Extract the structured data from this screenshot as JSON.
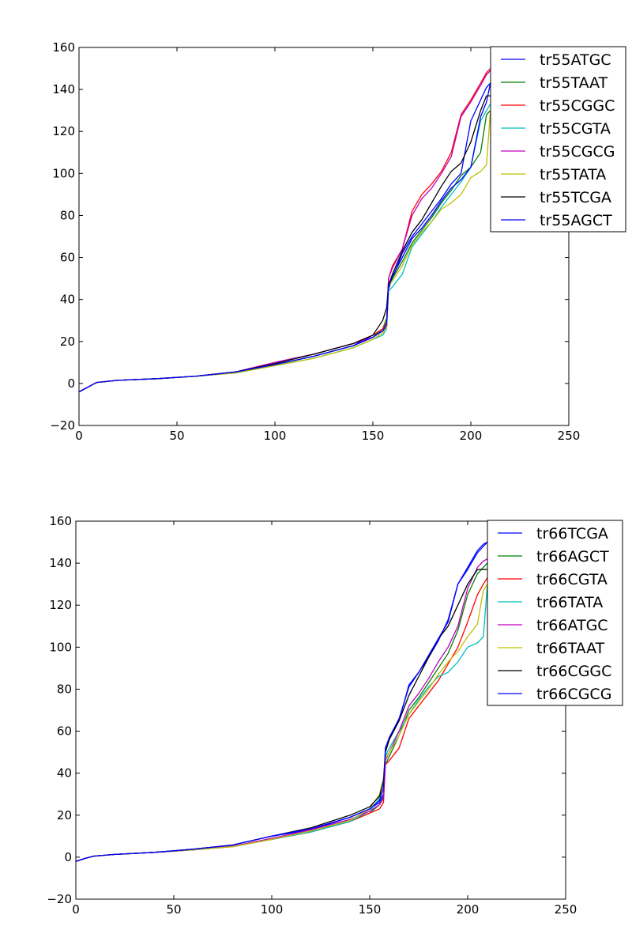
{
  "chart_data": [
    {
      "type": "line",
      "title": "",
      "xlabel": "",
      "ylabel": "",
      "xlim": [
        0,
        250
      ],
      "ylim": [
        -20,
        160
      ],
      "xticks": [
        "0",
        "50",
        "100",
        "150",
        "200",
        "250"
      ],
      "yticks": [
        "−20",
        "0",
        "20",
        "40",
        "60",
        "80",
        "100",
        "120",
        "140",
        "160"
      ],
      "grid": false,
      "legend_position": "top-right",
      "series": [
        {
          "name": "tr55ATGC",
          "color": "#0000ff",
          "x": [
            0,
            5,
            9,
            20,
            40,
            60,
            80,
            100,
            120,
            140,
            150,
            155,
            157,
            158,
            160,
            165,
            170,
            175,
            180,
            185,
            190,
            195,
            200,
            205,
            208,
            210
          ],
          "y": [
            -4,
            -1.5,
            0.5,
            1.5,
            2.3,
            3.5,
            5.5,
            9,
            13,
            18,
            23,
            25,
            27,
            45,
            50,
            62,
            70,
            76,
            82,
            88,
            95,
            100,
            125,
            135,
            141,
            143
          ]
        },
        {
          "name": "tr55TAAT",
          "color": "#008000",
          "x": [
            0,
            5,
            9,
            20,
            40,
            60,
            80,
            100,
            120,
            140,
            150,
            155,
            157,
            158,
            160,
            165,
            170,
            175,
            180,
            185,
            190,
            195,
            200,
            205,
            208,
            210
          ],
          "y": [
            -4,
            -1.5,
            0.5,
            1.5,
            2.3,
            3.5,
            5.5,
            9,
            13,
            18,
            22,
            26,
            31,
            46,
            50,
            58,
            67,
            73,
            79,
            86,
            92,
            99,
            103,
            110,
            128,
            130
          ]
        },
        {
          "name": "tr55CGGC",
          "color": "#ff0000",
          "x": [
            0,
            5,
            9,
            20,
            40,
            60,
            80,
            100,
            120,
            140,
            150,
            155,
            157,
            158,
            160,
            165,
            170,
            175,
            180,
            185,
            190,
            195,
            200,
            205,
            208,
            210
          ],
          "y": [
            -4,
            -1.5,
            0.5,
            1.5,
            2.3,
            3.5,
            5.5,
            10,
            14,
            19,
            23,
            26,
            29,
            50,
            56,
            64,
            82,
            90,
            95,
            101,
            110,
            128,
            135,
            143,
            148,
            150
          ]
        },
        {
          "name": "tr55CGTA",
          "color": "#00bfbf",
          "x": [
            0,
            5,
            9,
            20,
            40,
            60,
            80,
            100,
            120,
            140,
            150,
            155,
            157,
            158,
            160,
            165,
            170,
            175,
            180,
            185,
            190,
            195,
            200,
            205,
            208,
            210
          ],
          "y": [
            -4,
            -1.5,
            0.5,
            1.5,
            2.3,
            3.5,
            5,
            8.5,
            12,
            17,
            21,
            23,
            26,
            44,
            46,
            52,
            65,
            71,
            77,
            84,
            90,
            96,
            103,
            125,
            130,
            133
          ]
        },
        {
          "name": "tr55CGCG",
          "color": "#bf00bf",
          "x": [
            0,
            5,
            9,
            20,
            40,
            60,
            80,
            100,
            120,
            140,
            150,
            155,
            157,
            158,
            160,
            165,
            170,
            175,
            180,
            185,
            190,
            195,
            200,
            205,
            208,
            210
          ],
          "y": [
            -4,
            -1.5,
            0.5,
            1.5,
            2.3,
            3.5,
            5.5,
            10,
            14,
            19,
            22,
            25,
            28,
            50,
            55,
            64,
            80,
            88,
            93,
            100,
            108,
            127,
            134,
            142,
            147,
            149
          ]
        },
        {
          "name": "tr55TATA",
          "color": "#bfbf00",
          "x": [
            0,
            5,
            9,
            20,
            40,
            60,
            80,
            100,
            120,
            140,
            150,
            155,
            157,
            158,
            160,
            165,
            170,
            175,
            180,
            185,
            190,
            195,
            200,
            205,
            208,
            210
          ],
          "y": [
            -4,
            -1.5,
            0.5,
            1.5,
            2.3,
            3.5,
            5,
            8.5,
            12,
            17,
            21,
            24,
            27,
            46,
            49,
            56,
            66,
            72,
            77,
            83,
            86,
            90,
            98,
            101,
            104,
            130
          ]
        },
        {
          "name": "tr55TCGA",
          "color": "#000000",
          "x": [
            0,
            5,
            9,
            20,
            40,
            60,
            80,
            100,
            120,
            140,
            150,
            155,
            157,
            158,
            160,
            165,
            170,
            175,
            180,
            185,
            190,
            195,
            200,
            205,
            208,
            210
          ],
          "y": [
            -4,
            -1.5,
            0.5,
            1.5,
            2.3,
            3.5,
            5.5,
            9.5,
            14,
            19,
            23,
            30,
            36,
            47,
            52,
            63,
            72,
            78,
            86,
            94,
            101,
            105,
            115,
            130,
            137,
            137
          ]
        },
        {
          "name": "tr55AGCT",
          "color": "#0000ff",
          "x": [
            0,
            5,
            9,
            20,
            40,
            60,
            80,
            100,
            120,
            140,
            150,
            155,
            157,
            158,
            160,
            165,
            170,
            175,
            180,
            185,
            190,
            195,
            200,
            205,
            208,
            210
          ],
          "y": [
            -4,
            -1.5,
            0.5,
            1.5,
            2.3,
            3.5,
            5.5,
            9,
            13,
            18,
            22,
            25,
            28,
            46,
            51,
            60,
            69,
            74,
            80,
            87,
            93,
            97,
            103,
            127,
            134,
            143
          ]
        }
      ]
    },
    {
      "type": "line",
      "title": "",
      "xlabel": "",
      "ylabel": "",
      "xlim": [
        0,
        250
      ],
      "ylim": [
        -20,
        160
      ],
      "xticks": [
        "0",
        "50",
        "100",
        "150",
        "200",
        "250"
      ],
      "yticks": [
        "−20",
        "0",
        "20",
        "40",
        "60",
        "80",
        "100",
        "120",
        "140",
        "160"
      ],
      "grid": false,
      "legend_position": "top-right",
      "series": [
        {
          "name": "tr66TCGA",
          "color": "#0000ff",
          "x": [
            0,
            5,
            9,
            20,
            40,
            60,
            80,
            100,
            120,
            140,
            150,
            155,
            157,
            158,
            160,
            165,
            170,
            175,
            180,
            185,
            190,
            195,
            200,
            205,
            208,
            210
          ],
          "y": [
            -2,
            -0.5,
            0.5,
            1.3,
            2.3,
            3.8,
            5.8,
            10,
            13,
            19,
            23,
            26,
            30,
            50,
            57,
            65,
            82,
            88,
            95,
            103,
            113,
            130,
            137,
            145,
            148,
            150
          ]
        },
        {
          "name": "tr66AGCT",
          "color": "#008000",
          "x": [
            0,
            5,
            9,
            20,
            40,
            60,
            80,
            100,
            120,
            140,
            150,
            155,
            157,
            158,
            160,
            165,
            170,
            175,
            180,
            185,
            190,
            195,
            200,
            205,
            208,
            210
          ],
          "y": [
            -2,
            -0.5,
            0.5,
            1.3,
            2.3,
            3.5,
            5.2,
            8.5,
            12,
            17,
            21,
            25,
            29,
            44,
            48,
            58,
            70,
            76,
            83,
            90,
            97,
            108,
            125,
            135,
            138,
            140
          ]
        },
        {
          "name": "tr66CGTA",
          "color": "#ff0000",
          "x": [
            0,
            5,
            9,
            20,
            40,
            60,
            80,
            100,
            120,
            140,
            150,
            155,
            157,
            158,
            160,
            165,
            170,
            175,
            180,
            185,
            190,
            195,
            200,
            205,
            208,
            210
          ],
          "y": [
            -2,
            -0.5,
            0.5,
            1.3,
            2.3,
            3.5,
            5,
            8.5,
            12,
            17,
            21,
            23,
            26,
            44,
            46,
            52,
            66,
            72,
            78,
            84,
            92,
            100,
            112,
            125,
            130,
            133
          ]
        },
        {
          "name": "tr66TATA",
          "color": "#00bfbf",
          "x": [
            0,
            5,
            9,
            20,
            40,
            60,
            80,
            100,
            120,
            140,
            150,
            155,
            157,
            158,
            160,
            165,
            170,
            175,
            180,
            185,
            190,
            195,
            200,
            205,
            208,
            210
          ],
          "y": [
            -2,
            -0.5,
            0.5,
            1.3,
            2.3,
            3.5,
            5,
            8.5,
            12,
            17,
            22,
            28,
            37,
            48,
            52,
            60,
            68,
            75,
            81,
            86,
            88,
            93,
            100,
            102,
            105,
            129
          ]
        },
        {
          "name": "tr66ATGC",
          "color": "#bf00bf",
          "x": [
            0,
            5,
            9,
            20,
            40,
            60,
            80,
            100,
            120,
            140,
            150,
            155,
            157,
            158,
            160,
            165,
            170,
            175,
            180,
            185,
            190,
            195,
            200,
            205,
            208,
            210
          ],
          "y": [
            -2,
            -0.5,
            0.5,
            1.3,
            2.3,
            3.5,
            5.2,
            9,
            13,
            18,
            22,
            25,
            28,
            46,
            50,
            60,
            72,
            78,
            85,
            93,
            100,
            110,
            128,
            138,
            141,
            142
          ]
        },
        {
          "name": "tr66TAAT",
          "color": "#bfbf00",
          "x": [
            0,
            5,
            9,
            20,
            40,
            60,
            80,
            100,
            120,
            140,
            150,
            155,
            157,
            158,
            160,
            165,
            170,
            175,
            180,
            185,
            190,
            195,
            200,
            205,
            208,
            210
          ],
          "y": [
            -2,
            -0.5,
            0.5,
            1.3,
            2.3,
            3.5,
            5,
            8.5,
            12.5,
            17.5,
            23,
            30,
            38,
            47,
            50,
            58,
            68,
            74,
            80,
            87,
            93,
            98,
            105,
            111,
            127,
            130
          ]
        },
        {
          "name": "tr66CGGC",
          "color": "#000000",
          "x": [
            0,
            5,
            9,
            20,
            40,
            60,
            80,
            100,
            120,
            140,
            150,
            155,
            157,
            158,
            160,
            165,
            170,
            175,
            180,
            185,
            190,
            195,
            200,
            205,
            208,
            210
          ],
          "y": [
            -2,
            -0.5,
            0.5,
            1.3,
            2.3,
            3.8,
            5.8,
            10,
            14,
            20,
            24,
            29,
            36,
            50,
            56,
            65,
            77,
            86,
            95,
            104,
            110,
            120,
            130,
            137,
            137,
            137
          ]
        },
        {
          "name": "tr66CGCG",
          "color": "#0000ff",
          "x": [
            0,
            5,
            9,
            20,
            40,
            60,
            80,
            100,
            120,
            140,
            150,
            155,
            157,
            158,
            160,
            165,
            170,
            175,
            180,
            185,
            190,
            195,
            200,
            205,
            208,
            210
          ],
          "y": [
            -2,
            -0.5,
            0.5,
            1.3,
            2.3,
            3.8,
            5.8,
            10,
            13.5,
            19,
            23,
            27,
            33,
            52,
            57,
            66,
            81,
            88,
            96,
            104,
            112,
            130,
            138,
            146,
            149,
            150
          ]
        }
      ]
    }
  ]
}
